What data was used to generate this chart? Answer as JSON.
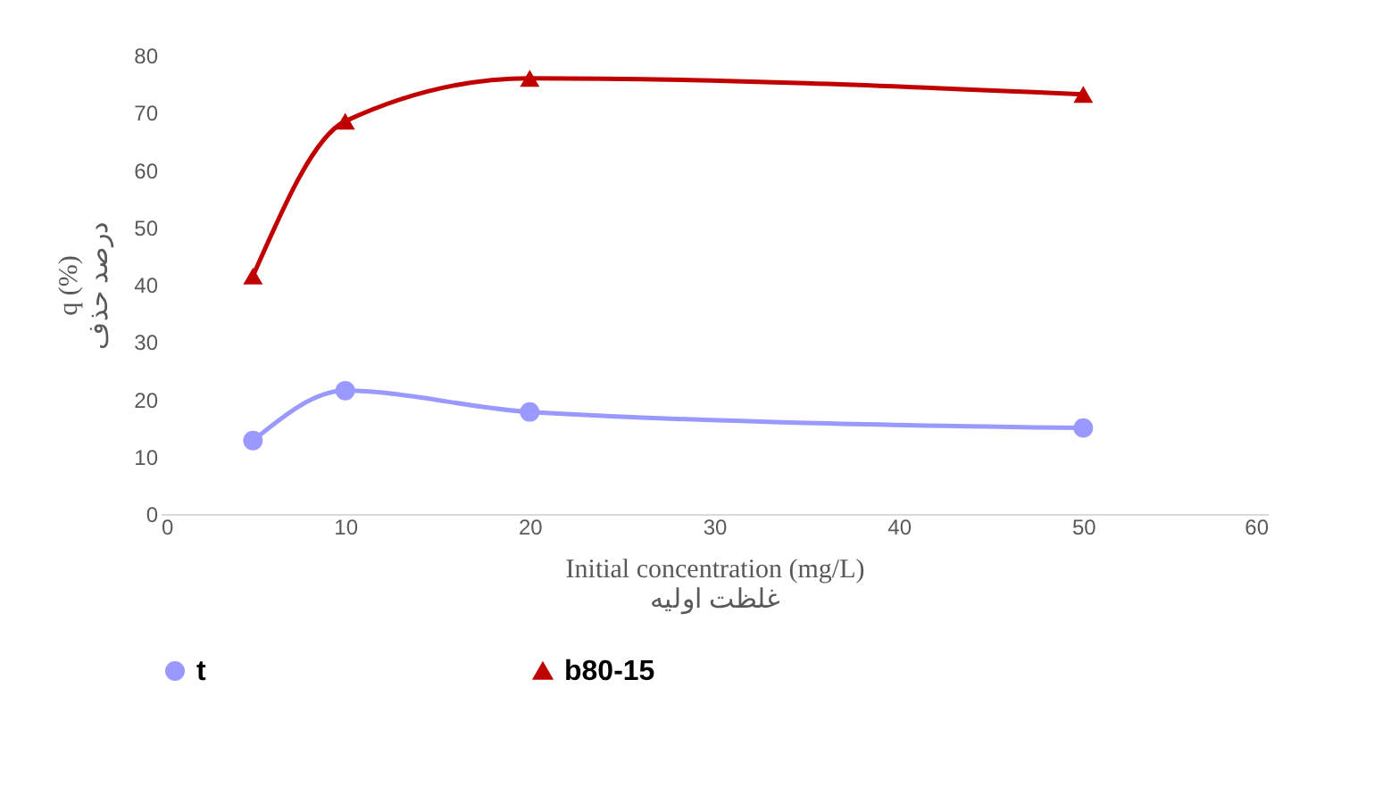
{
  "chart_data": {
    "type": "line",
    "xlabel": "Initial concentration (mg/L)\nغلظت اولیه",
    "ylabel": "q (%)\nدرصد حذف",
    "x": [
      5,
      10,
      20,
      50
    ],
    "series": [
      {
        "name": "t",
        "color": "#9999ff",
        "marker": "circle",
        "values": [
          12.8,
          21.5,
          17.8,
          15
        ]
      },
      {
        "name": "b80-15",
        "color": "#c00000",
        "marker": "triangle",
        "values": [
          41.5,
          68.5,
          76,
          73.2
        ]
      }
    ],
    "xlim": [
      0,
      60
    ],
    "xticks": [
      0,
      10,
      20,
      30,
      40,
      50,
      60
    ],
    "ylim": [
      0,
      80
    ],
    "yticks": [
      0,
      10,
      20,
      30,
      40,
      50,
      60,
      70,
      80
    ],
    "grid": false,
    "legend": "bottom"
  }
}
